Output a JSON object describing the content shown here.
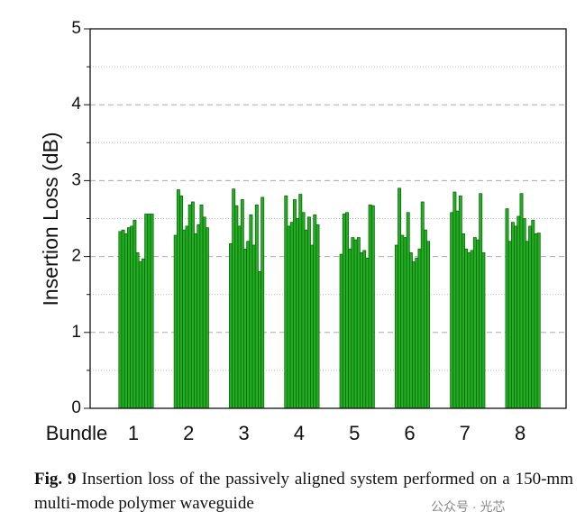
{
  "chart_data": {
    "type": "grouped_bar",
    "y_label": "Insertion Loss (dB)",
    "x_label": "Bundle",
    "color": "#22b022",
    "edge_color": "#0c5a0c",
    "ylim": [
      0,
      5
    ],
    "yticks": [
      0,
      1,
      2,
      3,
      4,
      5
    ],
    "minor_yticks": [
      0.5,
      1.5,
      2.5,
      3.5,
      4.5
    ],
    "grid": true,
    "groups": [
      {
        "label": "1",
        "values": [
          2.33,
          2.35,
          2.3,
          2.38,
          2.4,
          2.48,
          2.05,
          1.93,
          1.97,
          2.56,
          2.56,
          2.56
        ]
      },
      {
        "label": "2",
        "values": [
          2.28,
          2.88,
          2.8,
          2.35,
          2.4,
          2.68,
          2.72,
          2.3,
          2.42,
          2.68,
          2.52,
          2.38
        ]
      },
      {
        "label": "3",
        "values": [
          2.17,
          2.89,
          2.67,
          2.4,
          2.75,
          2.1,
          2.2,
          2.55,
          2.15,
          2.68,
          1.8,
          2.78
        ]
      },
      {
        "label": "4",
        "values": [
          2.8,
          2.4,
          2.45,
          2.75,
          2.5,
          2.82,
          2.58,
          2.35,
          2.52,
          2.15,
          2.55,
          2.42
        ]
      },
      {
        "label": "5",
        "values": [
          2.03,
          2.56,
          2.58,
          2.1,
          2.25,
          2.22,
          2.25,
          2.05,
          2.08,
          1.98,
          2.68,
          2.67
        ]
      },
      {
        "label": "6",
        "values": [
          2.15,
          2.9,
          2.28,
          2.25,
          2.58,
          2.05,
          1.93,
          1.98,
          2.1,
          2.72,
          2.35,
          2.2
        ]
      },
      {
        "label": "7",
        "values": [
          2.58,
          2.85,
          2.6,
          2.8,
          2.3,
          2.1,
          2.05,
          2.08,
          2.25,
          2.22,
          2.83,
          2.05
        ]
      },
      {
        "label": "8",
        "values": [
          2.63,
          2.2,
          2.45,
          2.4,
          2.53,
          2.83,
          2.5,
          2.2,
          2.4,
          2.48,
          2.3,
          2.31
        ]
      }
    ]
  },
  "caption": {
    "label": "Fig. 9",
    "text": "Insertion loss of the passively aligned system performed on a 150-mm multi-mode polymer waveguide"
  },
  "watermark": "公众号 · 光芯"
}
